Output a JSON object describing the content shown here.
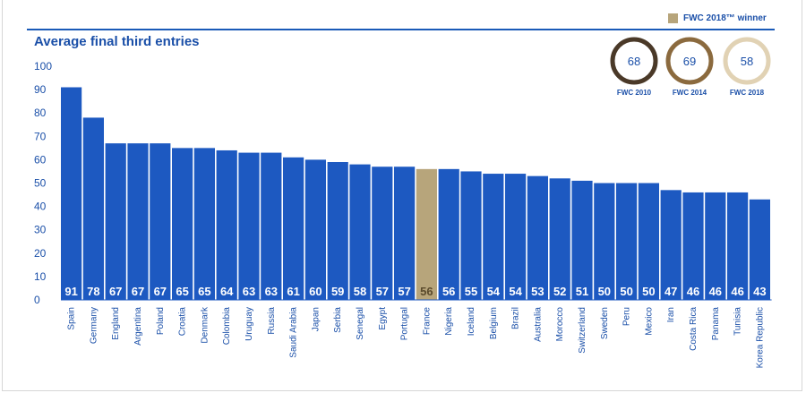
{
  "legend": {
    "label": "FWC 2018™ winner"
  },
  "colors": {
    "bar": "#1d59c1",
    "highlight": "#b7a57b",
    "text": "#1a4fa8",
    "ring2010": "#4a3928",
    "ring2014": "#8b6a3e",
    "ring2018": "#e1d2b4"
  },
  "rings": [
    {
      "value": "68",
      "label": "FWC 2010"
    },
    {
      "value": "69",
      "label": "FWC 2014"
    },
    {
      "value": "58",
      "label": "FWC 2018"
    }
  ],
  "chart_data": {
    "type": "bar",
    "title": "Average final third entries",
    "xlabel": "",
    "ylabel": "",
    "ylim": [
      0,
      100
    ],
    "yticks": [
      0,
      10,
      20,
      30,
      40,
      50,
      60,
      70,
      80,
      90,
      100
    ],
    "grid": false,
    "highlight_category": "France",
    "categories": [
      "Spain",
      "Germany",
      "England",
      "Argentina",
      "Poland",
      "Croatia",
      "Denmark",
      "Colombia",
      "Uruguay",
      "Russia",
      "Saudi Arabia",
      "Japan",
      "Serbia",
      "Senegal",
      "Egypt",
      "Portugal",
      "France",
      "Nigeria",
      "Iceland",
      "Belgium",
      "Brazil",
      "Australia",
      "Morocco",
      "Switzerland",
      "Sweden",
      "Peru",
      "Mexico",
      "Iran",
      "Costa Rica",
      "Panama",
      "Tunisia",
      "Korea Republic"
    ],
    "values": [
      91,
      78,
      67,
      67,
      67,
      65,
      65,
      64,
      63,
      63,
      61,
      60,
      59,
      58,
      57,
      57,
      56,
      56,
      55,
      54,
      54,
      53,
      52,
      51,
      50,
      50,
      50,
      47,
      46,
      46,
      46,
      43
    ]
  }
}
